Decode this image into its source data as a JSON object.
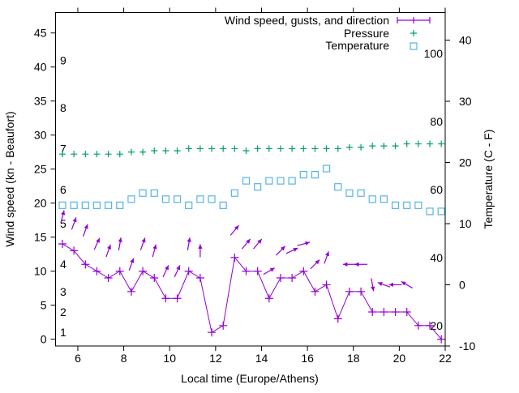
{
  "chart_data": {
    "type": "line",
    "xlabel": "Local time (Europe/Athens)",
    "ylabel": "Wind speed (kn - Beaufort)",
    "y2label": "Temperature (C - F)",
    "xlim": [
      5.03,
      22
    ],
    "ylim": [
      -1,
      48
    ],
    "y2lim": [
      -10,
      44.5
    ],
    "x_ticks": [
      6,
      8,
      10,
      12,
      14,
      16,
      18,
      20,
      22
    ],
    "y_ticks": [
      0,
      5,
      10,
      15,
      20,
      25,
      30,
      35,
      40,
      45
    ],
    "y2_ticks": [
      -10,
      0,
      10,
      20,
      30,
      40
    ],
    "beaufort_labels": [
      {
        "label": "1",
        "kn": 1
      },
      {
        "label": "2",
        "kn": 4
      },
      {
        "label": "3",
        "kn": 7
      },
      {
        "label": "4",
        "kn": 11
      },
      {
        "label": "5",
        "kn": 17
      },
      {
        "label": "6",
        "kn": 22
      },
      {
        "label": "7",
        "kn": 28
      },
      {
        "label": "8",
        "kn": 34
      },
      {
        "label": "9",
        "kn": 41
      }
    ],
    "fahrenheit_labels": [
      {
        "label": "20",
        "c": -6.67
      },
      {
        "label": "40",
        "c": 4.44
      },
      {
        "label": "60",
        "c": 15.56
      },
      {
        "label": "80",
        "c": 26.67
      },
      {
        "label": "100",
        "c": 37.78
      }
    ],
    "legend": {
      "placement": "top-right",
      "entries": [
        "Wind speed, gusts, and direction",
        "Pressure",
        "Temperature"
      ]
    },
    "colors": {
      "wind": "#9400d3",
      "pressure": "#009e73",
      "temperature": "#56b4e9"
    },
    "x": [
      5.33,
      5.83,
      6.33,
      6.83,
      7.33,
      7.83,
      8.33,
      8.83,
      9.33,
      9.83,
      10.33,
      10.83,
      11.33,
      11.83,
      12.33,
      12.83,
      13.33,
      13.83,
      14.33,
      14.83,
      15.33,
      15.83,
      16.33,
      16.83,
      17.33,
      17.83,
      18.33,
      18.83,
      19.33,
      19.83,
      20.33,
      20.83,
      21.33,
      21.83
    ],
    "series": [
      {
        "name": "Wind speed",
        "axis": "y",
        "values": [
          14,
          13,
          11,
          10,
          9,
          10,
          7,
          10,
          9,
          6,
          6,
          10,
          9,
          1,
          2,
          12,
          10,
          10,
          6,
          9,
          9,
          10,
          7,
          8,
          3,
          7,
          7,
          4,
          4,
          4,
          4,
          2,
          2,
          0
        ]
      },
      {
        "name": "Gusts",
        "axis": "y",
        "values": [
          18,
          17,
          16,
          14,
          13,
          14,
          11,
          14,
          13,
          10,
          10,
          14,
          13,
          null,
          null,
          16,
          14,
          14,
          10,
          13,
          13,
          14,
          11,
          12,
          null,
          11,
          11,
          8,
          8,
          8,
          8,
          null,
          null,
          null
        ]
      },
      {
        "name": "Direction (arrow bearing, deg)",
        "axis": "none",
        "values": [
          15,
          20,
          20,
          25,
          20,
          10,
          20,
          20,
          15,
          25,
          25,
          10,
          0,
          null,
          null,
          40,
          40,
          40,
          60,
          45,
          65,
          75,
          45,
          20,
          null,
          270,
          270,
          170,
          290,
          270,
          300,
          null,
          null,
          null
        ]
      },
      {
        "name": "Pressure",
        "axis": "y",
        "values": [
          27.2,
          27.2,
          27.2,
          27.2,
          27.2,
          27.2,
          27.5,
          27.5,
          27.7,
          27.7,
          27.7,
          28.0,
          28.0,
          28.0,
          28.0,
          28.0,
          27.7,
          28.0,
          28.0,
          28.0,
          28.0,
          28.0,
          28.0,
          28.0,
          28.0,
          28.2,
          28.2,
          28.4,
          28.4,
          28.4,
          28.7,
          28.7,
          28.7,
          28.7
        ]
      },
      {
        "name": "Temperature",
        "axis": "y2",
        "values": [
          13,
          13,
          13,
          13,
          13,
          13,
          14,
          15,
          15,
          14,
          14,
          13,
          14,
          14,
          13,
          15,
          17,
          16,
          17,
          17,
          17,
          18,
          18,
          19,
          16,
          15,
          15,
          14,
          14,
          13,
          13,
          13,
          12,
          12
        ]
      }
    ]
  }
}
